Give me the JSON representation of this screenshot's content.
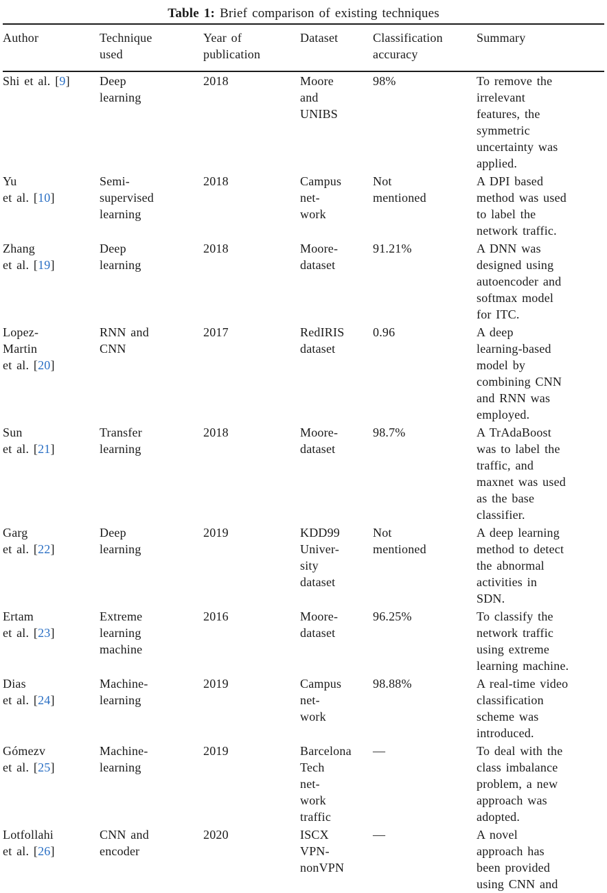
{
  "title": {
    "label": "Table 1:",
    "text": "Brief comparison of existing techniques"
  },
  "columns": [
    "Author",
    "Technique\nused",
    "Year of\npublication",
    "Dataset",
    "Classification\naccuracy",
    "Summary"
  ],
  "rows": [
    {
      "author_pre": "Shi et al. [",
      "cite": "9",
      "author_post": "]",
      "technique": "Deep\nlearning",
      "year": "2018",
      "dataset": "Moore\nand\nUNIBS",
      "accuracy": "98%",
      "summary": "To remove the\nirrelevant\nfeatures, the\nsymmetric\nuncertainty was\napplied."
    },
    {
      "author_pre": "Yu\net al. [",
      "cite": "10",
      "author_post": "]",
      "technique": "Semi-\nsupervised\nlearning",
      "year": "2018",
      "dataset": "Campus\nnet-\nwork",
      "accuracy": "Not\nmentioned",
      "summary": "A DPI based\nmethod was used\nto label the\nnetwork traffic."
    },
    {
      "author_pre": "Zhang\net al. [",
      "cite": "19",
      "author_post": "]",
      "technique": "Deep\nlearning",
      "year": "2018",
      "dataset": "Moore-\ndataset",
      "accuracy": "91.21%",
      "summary": "A DNN was\ndesigned using\nautoencoder and\nsoftmax model\nfor ITC."
    },
    {
      "author_pre": "Lopez-\nMartin\net al. [",
      "cite": "20",
      "author_post": "]",
      "technique": "RNN and\nCNN",
      "year": "2017",
      "dataset": "RedIRIS\ndataset",
      "accuracy": "0.96",
      "summary": "A deep\nlearning-based\nmodel by\ncombining CNN\nand RNN was\nemployed."
    },
    {
      "author_pre": "Sun\net al. [",
      "cite": "21",
      "author_post": "]",
      "technique": "Transfer\nlearning",
      "year": "2018",
      "dataset": "Moore-\ndataset",
      "accuracy": "98.7%",
      "summary": "A TrAdaBoost\nwas to label the\ntraffic, and\nmaxnet was used\nas the base\nclassifier."
    },
    {
      "author_pre": "Garg\net al. [",
      "cite": "22",
      "author_post": "]",
      "technique": "Deep\nlearning",
      "year": "2019",
      "dataset": "KDD99\nUniver-\nsity\ndataset",
      "accuracy": "Not\nmentioned",
      "summary": "A deep learning\nmethod to detect\nthe abnormal\nactivities in\nSDN."
    },
    {
      "author_pre": "Ertam\net al. [",
      "cite": "23",
      "author_post": "]",
      "technique": "Extreme\nlearning\nmachine",
      "year": "2016",
      "dataset": "Moore-\ndataset",
      "accuracy": "96.25%",
      "summary": "To classify the\nnetwork traffic\nusing extreme\nlearning machine."
    },
    {
      "author_pre": "Dias\net al. [",
      "cite": "24",
      "author_post": "]",
      "technique": "Machine-\nlearning",
      "year": "2019",
      "dataset": "Campus\nnet-\nwork",
      "accuracy": "98.88%",
      "summary": "A real-time video\nclassification\nscheme was\nintroduced."
    },
    {
      "author_pre": "Gómezv\net al. [",
      "cite": "25",
      "author_post": "]",
      "technique": "Machine-\nlearning",
      "year": "2019",
      "dataset": "Barcelona\nTech\nnet-\nwork\ntraffic",
      "accuracy": "—",
      "summary": "To deal with the\nclass imbalance\nproblem, a new\napproach was\nadopted."
    },
    {
      "author_pre": "Lotfollahi\net al. [",
      "cite": "26",
      "author_post": "]",
      "technique": "CNN and\nencoder",
      "year": "2020",
      "dataset": "ISCX\nVPN-\nnonVPN",
      "accuracy": "—",
      "summary": "A novel\napproach has\nbeen provided\nusing CNN and"
    }
  ],
  "colors": {
    "text": "#1b1b1b",
    "citation": "#2a6fc4",
    "background": "#ffffff",
    "rule": "#1b1b1b"
  }
}
